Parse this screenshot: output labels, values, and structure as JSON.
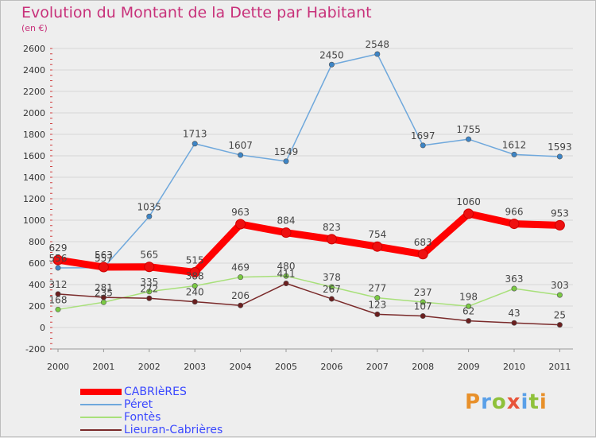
{
  "header": {
    "title": "Evolution du Montant de la Dette par Habitant",
    "subtitle": "(en €)"
  },
  "logo": {
    "text": "Proxiti",
    "letters": [
      {
        "ch": "P",
        "color": "#e8902a"
      },
      {
        "ch": "r",
        "color": "#5aa0e8"
      },
      {
        "ch": "o",
        "color": "#8fc13a"
      },
      {
        "ch": "x",
        "color": "#e8543a"
      },
      {
        "ch": "i",
        "color": "#5aa0e8"
      },
      {
        "ch": "t",
        "color": "#8fc13a"
      },
      {
        "ch": "i",
        "color": "#e8902a"
      }
    ]
  },
  "chart_data": {
    "type": "line",
    "title": "Evolution du Montant de la Dette par Habitant",
    "subtitle": "(en €)",
    "categories": [
      "2000",
      "2001",
      "2002",
      "2003",
      "2004",
      "2005",
      "2006",
      "2007",
      "2008",
      "2009",
      "2010",
      "2011"
    ],
    "ylim": [
      -200,
      2600
    ],
    "yticks": [
      -200,
      0,
      200,
      400,
      600,
      800,
      1000,
      1200,
      1400,
      1600,
      1800,
      2000,
      2200,
      2400,
      2600
    ],
    "grid": "horizontal",
    "legend_position": "bottom-left",
    "series": [
      {
        "name": "CABRIèRES",
        "color": "#ff0000",
        "marker": "#ee1010",
        "values": [
          629,
          563,
          565,
          515,
          963,
          884,
          823,
          754,
          683,
          1060,
          966,
          953
        ],
        "thick": true
      },
      {
        "name": "Péret",
        "color": "#6fa8dc",
        "marker": "#3d85c6",
        "values": [
          556,
          557,
          1035,
          1713,
          1607,
          1549,
          2450,
          2548,
          1697,
          1755,
          1612,
          1593
        ],
        "thick": false
      },
      {
        "name": "Fontès",
        "color": "#a8e07a",
        "marker": "#7ac943",
        "values": [
          168,
          235,
          335,
          388,
          469,
          480,
          378,
          277,
          237,
          198,
          363,
          303
        ],
        "thick": false
      },
      {
        "name": "Lieuran-Cabrières",
        "color": "#7a2a2a",
        "marker": "#6b1f1f",
        "values": [
          312,
          281,
          272,
          240,
          206,
          411,
          267,
          123,
          107,
          62,
          43,
          25
        ],
        "thick": false
      }
    ]
  }
}
